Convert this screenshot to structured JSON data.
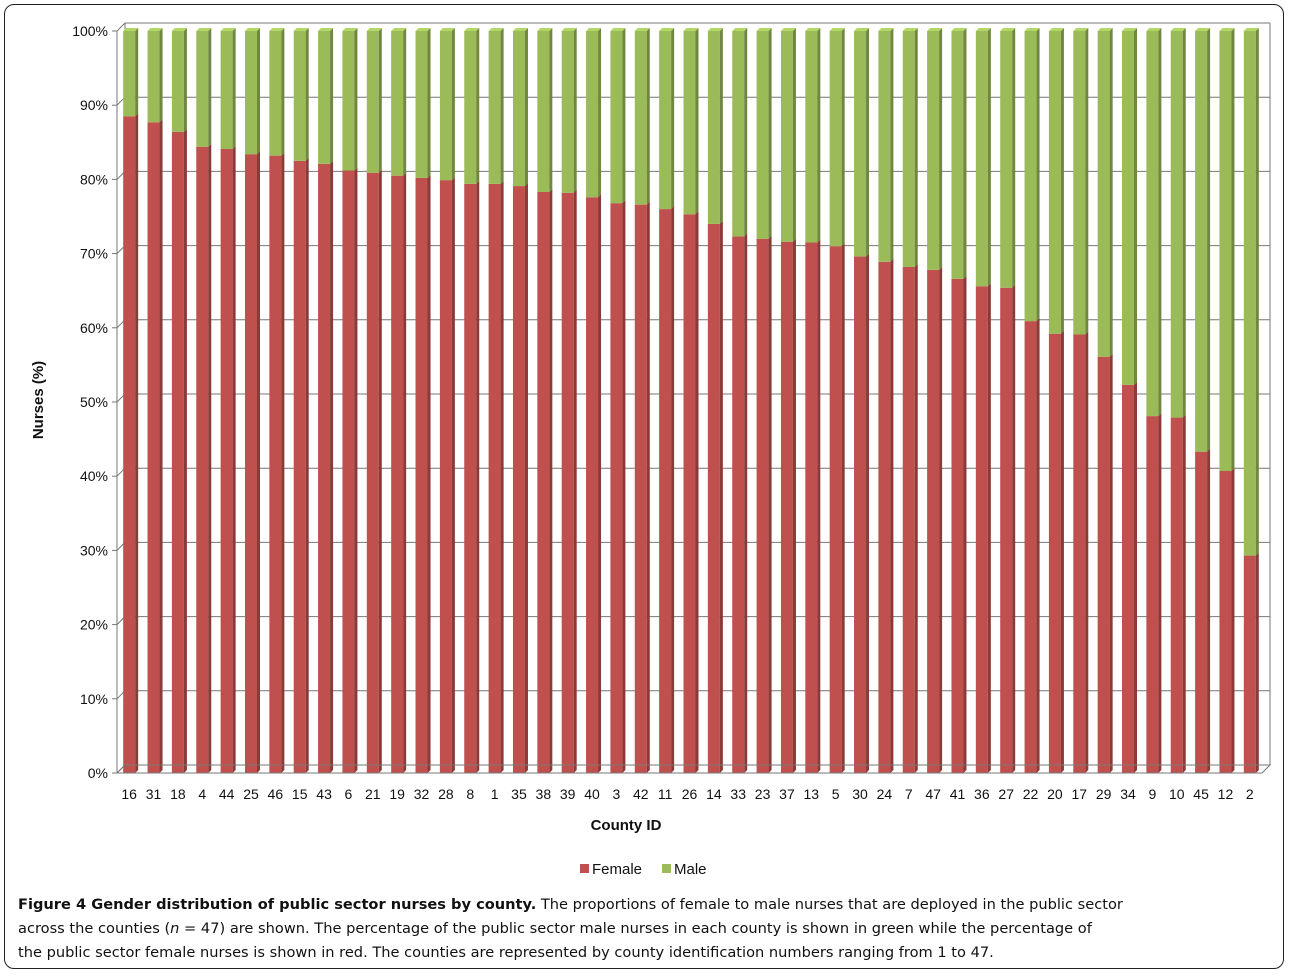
{
  "chart_data": {
    "type": "bar",
    "stacked": true,
    "categories": [
      "16",
      "31",
      "18",
      "4",
      "44",
      "25",
      "46",
      "15",
      "43",
      "6",
      "21",
      "19",
      "32",
      "28",
      "8",
      "1",
      "35",
      "38",
      "39",
      "40",
      "3",
      "42",
      "11",
      "26",
      "14",
      "33",
      "23",
      "37",
      "13",
      "5",
      "30",
      "24",
      "7",
      "47",
      "41",
      "36",
      "27",
      "22",
      "20",
      "17",
      "29",
      "34",
      "9",
      "10",
      "45",
      "12",
      "2"
    ],
    "series": [
      {
        "name": "Female",
        "color": "#c0504d",
        "values": [
          88.5,
          87.7,
          86.4,
          84.4,
          84.1,
          83.4,
          83.2,
          82.5,
          82.1,
          81.2,
          80.9,
          80.5,
          80.2,
          79.9,
          79.4,
          79.4,
          79.1,
          78.3,
          78.2,
          77.6,
          76.8,
          76.6,
          76.0,
          75.3,
          74.0,
          72.3,
          72.0,
          71.6,
          71.5,
          71.0,
          69.6,
          68.9,
          68.2,
          67.8,
          66.6,
          65.6,
          65.4,
          60.9,
          59.2,
          59.1,
          56.1,
          52.3,
          48.1,
          47.9,
          43.3,
          40.7,
          29.3
        ]
      },
      {
        "name": "Male",
        "color": "#9bbb59",
        "values": [
          11.5,
          12.3,
          13.6,
          15.6,
          15.9,
          16.6,
          16.8,
          17.5,
          17.9,
          18.8,
          19.1,
          19.5,
          19.8,
          20.1,
          20.6,
          20.6,
          20.9,
          21.7,
          21.8,
          22.4,
          23.2,
          23.4,
          24.0,
          24.7,
          26.0,
          27.7,
          28.0,
          28.4,
          28.5,
          29.0,
          30.4,
          31.1,
          31.8,
          32.2,
          33.4,
          34.4,
          34.6,
          39.1,
          40.8,
          40.9,
          43.9,
          47.7,
          51.9,
          52.1,
          56.7,
          59.3,
          70.7
        ]
      }
    ],
    "yticks": [
      "0%",
      "10%",
      "20%",
      "30%",
      "40%",
      "50%",
      "60%",
      "70%",
      "80%",
      "90%",
      "100%"
    ],
    "ylim": [
      0,
      100
    ],
    "ylabel": "Nurses (%)",
    "xlabel": "County ID",
    "grid": true,
    "legend": "bottom-center"
  },
  "caption": {
    "bold": "Figure 4 Gender distribution of public sector nurses by county.",
    "line1": " The proportions of female to male nurses that are deployed in the public sector",
    "line2_pre": "across the counties (",
    "line2_n": "n",
    "line2_post": " = 47) are shown. The percentage of the public sector male nurses in each county is shown in green while the percentage of",
    "line3": "the public sector female nurses is shown in red. The counties are represented by county identification numbers ranging from 1 to 47."
  }
}
